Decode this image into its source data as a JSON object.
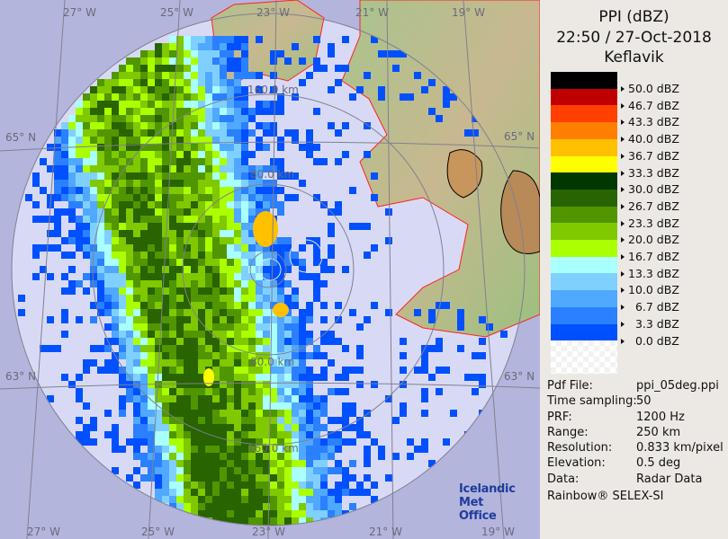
{
  "header": {
    "product": "PPI (dBZ)",
    "datetime": "22:50 / 27-Oct-2018",
    "site": "Keflavik"
  },
  "color_scale": [
    {
      "label": "50.0 dBZ",
      "color": "#000000"
    },
    {
      "label": "46.7 dBZ",
      "color": "#c00000"
    },
    {
      "label": "43.3 dBZ",
      "color": "#ff4000"
    },
    {
      "label": "40.0 dBZ",
      "color": "#ff8000"
    },
    {
      "label": "36.7 dBZ",
      "color": "#ffc000"
    },
    {
      "label": "33.3 dBZ",
      "color": "#ffff00"
    },
    {
      "label": "30.0 dBZ",
      "color": "#003800"
    },
    {
      "label": "26.7 dBZ",
      "color": "#286400"
    },
    {
      "label": "23.3 dBZ",
      "color": "#509600"
    },
    {
      "label": "20.0 dBZ",
      "color": "#80c800"
    },
    {
      "label": "16.7 dBZ",
      "color": "#aaff00"
    },
    {
      "label": "13.3 dBZ",
      "color": "#aaffff"
    },
    {
      "label": "10.0 dBZ",
      "color": "#80d0ff"
    },
    {
      "label": "  6.7 dBZ",
      "color": "#50a8ff"
    },
    {
      "label": "  3.3 dBZ",
      "color": "#2a80ff"
    },
    {
      "label": "  0.0 dBZ",
      "color": "#0050ff"
    }
  ],
  "info": [
    {
      "key": "Pdf File:",
      "value": "ppi_05deg.ppi"
    },
    {
      "key": "Time sampling:",
      "value": "50"
    },
    {
      "key": "PRF:",
      "value": "1200 Hz"
    },
    {
      "key": "Range:",
      "value": "250 km"
    },
    {
      "key": "Resolution:",
      "value": "0.833 km/pixel"
    },
    {
      "key": "Elevation:",
      "value": "0.5 deg"
    },
    {
      "key": "Data:",
      "value": "Radar Data"
    }
  ],
  "credit": "Rainbow® SELEX-SI",
  "logo": {
    "line1": "Icelandic Met",
    "line2": "Office"
  },
  "map": {
    "longitude_labels": [
      "27° W",
      "25° W",
      "23° W",
      "21° W",
      "19° W"
    ],
    "latitude_labels": [
      "65° N",
      "63° N"
    ],
    "range_labels": [
      "160.0 km",
      "80.0 km",
      "80.0 km",
      "160.0 km"
    ],
    "colors": {
      "background": "#b3b5dd",
      "range_disc": "#d8daf5",
      "coastline": "#ff2020",
      "grid": "#808090"
    }
  }
}
